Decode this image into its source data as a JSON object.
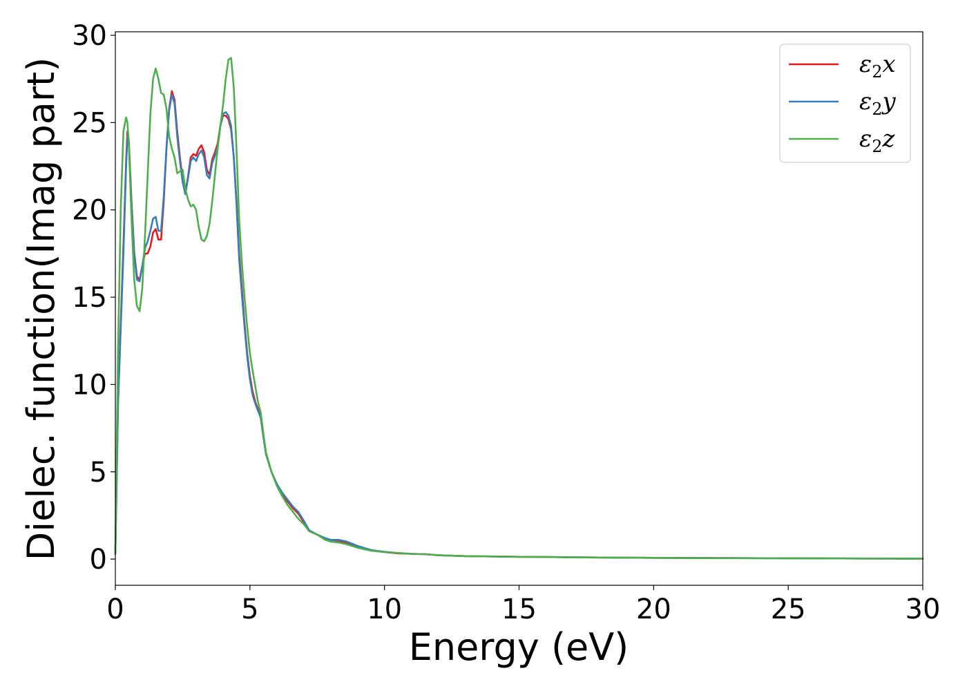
{
  "chart_data": {
    "type": "line",
    "title": "",
    "xlabel": "Energy (eV)",
    "ylabel": "Dielec. function(Imag part)",
    "xlim": [
      0,
      30
    ],
    "ylim": [
      -1.5,
      30.2
    ],
    "xticks": [
      "0",
      "5",
      "10",
      "15",
      "20",
      "25",
      "30"
    ],
    "yticks": [
      "0",
      "5",
      "10",
      "15",
      "20",
      "25",
      "30"
    ],
    "grid": false,
    "legend_position": "top-right",
    "series": [
      {
        "name": "ε₂x",
        "label_main": "ε",
        "label_sub": "2",
        "label_comp": "x",
        "color": "#e41a1c",
        "x": [
          0,
          0.1,
          0.2,
          0.3,
          0.4,
          0.45,
          0.5,
          0.6,
          0.7,
          0.8,
          0.9,
          1.0,
          1.1,
          1.2,
          1.3,
          1.4,
          1.5,
          1.6,
          1.7,
          1.8,
          1.9,
          2.0,
          2.1,
          2.2,
          2.3,
          2.4,
          2.5,
          2.6,
          2.7,
          2.8,
          2.9,
          3.0,
          3.1,
          3.2,
          3.3,
          3.4,
          3.5,
          3.6,
          3.7,
          3.8,
          3.9,
          4.0,
          4.1,
          4.2,
          4.3,
          4.4,
          4.5,
          4.6,
          4.7,
          4.8,
          4.9,
          5.0,
          5.1,
          5.2,
          5.3,
          5.4,
          5.5,
          5.6,
          5.8,
          6.0,
          6.2,
          6.4,
          6.6,
          6.8,
          7.0,
          7.2,
          7.5,
          7.8,
          8.0,
          8.3,
          8.6,
          9.0,
          9.5,
          10.0,
          10.5,
          11.0,
          11.5,
          12.0,
          13.0,
          14.0,
          15.0,
          16.0,
          17.0,
          18.0,
          19.0,
          20.0,
          22.0,
          24.0,
          26.0,
          28.0,
          30.0
        ],
        "y": [
          0.3,
          9.0,
          13.5,
          18.0,
          22.8,
          24.5,
          24.0,
          20.5,
          17.6,
          16.2,
          16.0,
          16.8,
          17.5,
          17.5,
          17.9,
          18.7,
          18.9,
          18.3,
          18.3,
          20.5,
          23.5,
          25.8,
          26.8,
          26.3,
          24.5,
          23.0,
          21.8,
          21.0,
          21.9,
          23.0,
          23.2,
          23.1,
          23.5,
          23.7,
          23.3,
          22.3,
          22.0,
          22.9,
          23.3,
          23.8,
          24.8,
          25.4,
          25.4,
          25.2,
          24.6,
          23.0,
          20.5,
          17.5,
          15.5,
          13.5,
          11.8,
          10.5,
          9.6,
          9.0,
          8.6,
          8.2,
          7.0,
          6.0,
          5.0,
          4.3,
          3.7,
          3.3,
          2.9,
          2.6,
          2.1,
          1.6,
          1.4,
          1.15,
          1.1,
          1.05,
          0.95,
          0.7,
          0.5,
          0.4,
          0.33,
          0.3,
          0.28,
          0.22,
          0.17,
          0.15,
          0.13,
          0.12,
          0.1,
          0.09,
          0.08,
          0.07,
          0.06,
          0.05,
          0.04,
          0.03,
          0.02
        ]
      },
      {
        "name": "ε₂y",
        "label_main": "ε",
        "label_sub": "2",
        "label_comp": "y",
        "color": "#377eb8",
        "x": [
          0,
          0.1,
          0.2,
          0.3,
          0.4,
          0.45,
          0.5,
          0.6,
          0.7,
          0.8,
          0.9,
          1.0,
          1.1,
          1.2,
          1.3,
          1.4,
          1.5,
          1.6,
          1.7,
          1.8,
          1.9,
          2.0,
          2.1,
          2.2,
          2.3,
          2.4,
          2.5,
          2.6,
          2.7,
          2.8,
          2.9,
          3.0,
          3.1,
          3.2,
          3.3,
          3.4,
          3.5,
          3.6,
          3.7,
          3.8,
          3.9,
          4.0,
          4.1,
          4.2,
          4.3,
          4.4,
          4.5,
          4.6,
          4.7,
          4.8,
          4.9,
          5.0,
          5.1,
          5.2,
          5.3,
          5.4,
          5.5,
          5.6,
          5.8,
          6.0,
          6.2,
          6.4,
          6.6,
          6.8,
          7.0,
          7.2,
          7.5,
          7.8,
          8.0,
          8.3,
          8.6,
          9.0,
          9.5,
          10.0,
          10.5,
          11.0,
          11.5,
          12.0,
          13.0,
          14.0,
          15.0,
          16.0,
          17.0,
          18.0,
          19.0,
          20.0,
          22.0,
          24.0,
          26.0,
          28.0,
          30.0
        ],
        "y": [
          0.3,
          8.8,
          13.2,
          17.5,
          22.5,
          24.2,
          23.8,
          20.3,
          17.5,
          16.0,
          15.9,
          16.8,
          17.8,
          18.2,
          18.8,
          19.5,
          19.6,
          18.8,
          18.8,
          20.8,
          23.6,
          25.7,
          26.6,
          26.1,
          24.2,
          22.8,
          21.6,
          20.9,
          21.8,
          22.8,
          23.0,
          22.8,
          23.2,
          23.4,
          23.0,
          22.0,
          21.8,
          22.7,
          23.1,
          23.6,
          24.8,
          25.5,
          25.6,
          25.4,
          24.8,
          23.0,
          20.3,
          17.2,
          15.2,
          13.3,
          11.6,
          10.3,
          9.4,
          8.9,
          8.5,
          8.1,
          7.0,
          6.0,
          5.0,
          4.3,
          3.8,
          3.4,
          3.0,
          2.7,
          2.2,
          1.65,
          1.4,
          1.2,
          1.1,
          1.1,
          1.0,
          0.75,
          0.52,
          0.42,
          0.35,
          0.3,
          0.28,
          0.22,
          0.17,
          0.15,
          0.13,
          0.12,
          0.1,
          0.09,
          0.08,
          0.07,
          0.06,
          0.05,
          0.04,
          0.03,
          0.02
        ]
      },
      {
        "name": "ε₂z",
        "label_main": "ε",
        "label_sub": "2",
        "label_comp": "z",
        "color": "#4daf4a",
        "x": [
          0,
          0.1,
          0.2,
          0.3,
          0.4,
          0.45,
          0.5,
          0.6,
          0.7,
          0.8,
          0.9,
          1.0,
          1.1,
          1.2,
          1.3,
          1.4,
          1.5,
          1.6,
          1.7,
          1.8,
          1.9,
          2.0,
          2.1,
          2.2,
          2.3,
          2.4,
          2.5,
          2.6,
          2.7,
          2.8,
          2.9,
          3.0,
          3.1,
          3.2,
          3.3,
          3.4,
          3.5,
          3.6,
          3.7,
          3.8,
          3.9,
          4.0,
          4.1,
          4.2,
          4.3,
          4.4,
          4.5,
          4.6,
          4.7,
          4.8,
          4.9,
          5.0,
          5.1,
          5.2,
          5.3,
          5.4,
          5.5,
          5.6,
          5.8,
          6.0,
          6.2,
          6.4,
          6.6,
          6.8,
          7.0,
          7.2,
          7.5,
          7.8,
          8.0,
          8.3,
          8.6,
          9.0,
          9.5,
          10.0,
          10.5,
          11.0,
          11.5,
          12.0,
          13.0,
          14.0,
          15.0,
          16.0,
          17.0,
          18.0,
          19.0,
          20.0,
          22.0,
          24.0,
          26.0,
          28.0,
          30.0
        ],
        "y": [
          0.3,
          12.0,
          20.0,
          24.5,
          25.3,
          25.0,
          23.8,
          19.5,
          16.0,
          14.5,
          14.2,
          15.5,
          18.5,
          22.0,
          25.5,
          27.5,
          28.1,
          27.5,
          26.7,
          26.6,
          25.8,
          24.2,
          23.5,
          23.0,
          22.1,
          22.2,
          22.3,
          21.2,
          20.6,
          20.2,
          20.3,
          20.0,
          19.0,
          18.3,
          18.2,
          18.5,
          19.2,
          20.5,
          22.0,
          23.5,
          24.8,
          26.0,
          27.5,
          28.6,
          28.7,
          27.0,
          23.5,
          19.5,
          17.0,
          15.0,
          13.3,
          11.8,
          10.8,
          9.9,
          9.0,
          8.4,
          7.2,
          6.1,
          5.0,
          4.2,
          3.6,
          3.1,
          2.7,
          2.3,
          2.0,
          1.6,
          1.4,
          1.1,
          1.0,
          0.95,
          0.85,
          0.65,
          0.48,
          0.4,
          0.35,
          0.3,
          0.28,
          0.22,
          0.17,
          0.15,
          0.13,
          0.12,
          0.1,
          0.09,
          0.08,
          0.07,
          0.06,
          0.05,
          0.04,
          0.03,
          0.02
        ]
      }
    ]
  }
}
